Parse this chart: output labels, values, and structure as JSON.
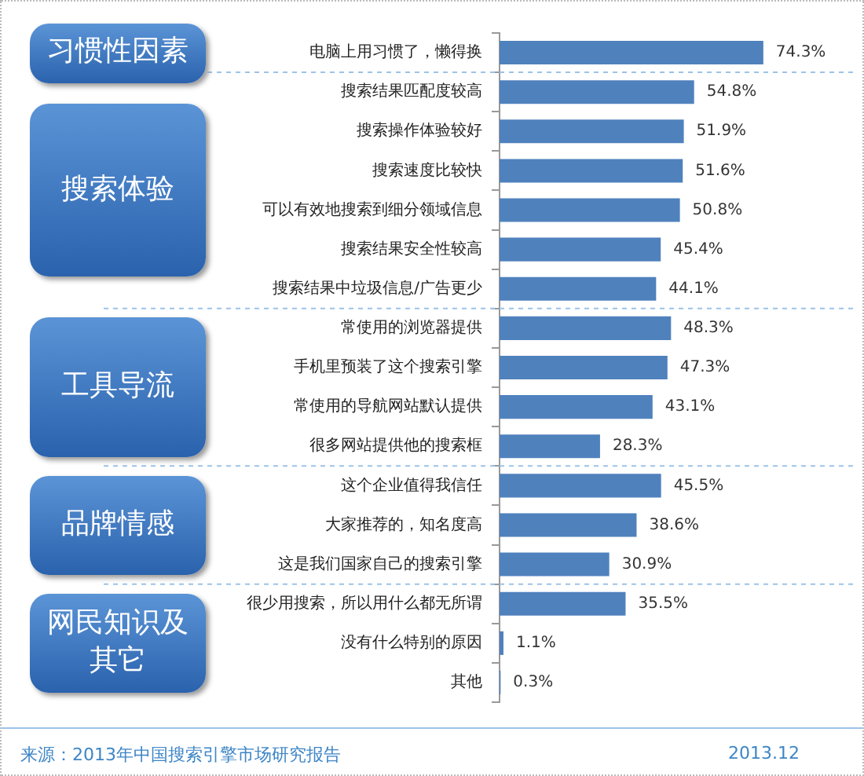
{
  "chart_data": {
    "type": "bar",
    "orientation": "horizontal",
    "categories": [
      "电脑上用习惯了，懒得换",
      "搜索结果匹配度较高",
      "搜索操作体验较好",
      "搜索速度比较快",
      "可以有效地搜索到细分领域信息",
      "搜索结果安全性较高",
      "搜索结果中垃圾信息/广告更少",
      "常使用的浏览器提供",
      "手机里预装了这个搜索引擎",
      "常使用的导航网站默认提供",
      "很多网站提供他的搜索框",
      "这个企业值得我信任",
      "大家推荐的，知名度高",
      "这是我们国家自己的搜索引擎",
      "很少用搜索，所以用什么都无所谓",
      "没有什么特别的原因",
      "其他"
    ],
    "values": [
      74.3,
      54.8,
      51.9,
      51.6,
      50.8,
      45.4,
      44.1,
      48.3,
      47.3,
      43.1,
      28.3,
      45.5,
      38.6,
      30.9,
      35.5,
      1.1,
      0.3
    ],
    "value_labels": [
      "74.3%",
      "54.8%",
      "51.9%",
      "51.6%",
      "50.8%",
      "45.4%",
      "44.1%",
      "48.3%",
      "47.3%",
      "43.1%",
      "28.3%",
      "45.5%",
      "38.6%",
      "30.9%",
      "35.5%",
      "1.1%",
      "0.3%"
    ],
    "color": "#4f81bd",
    "xlim": [
      0,
      100
    ],
    "grid": false,
    "legend": false,
    "tick_labels": "y",
    "annotations": [
      "习惯性因素",
      "搜索体验",
      "工具导流",
      "品牌情感",
      "网民知识及其它",
      "来源：2013年中国搜索引擎市场研究报告",
      "2013.12"
    ]
  }
}
